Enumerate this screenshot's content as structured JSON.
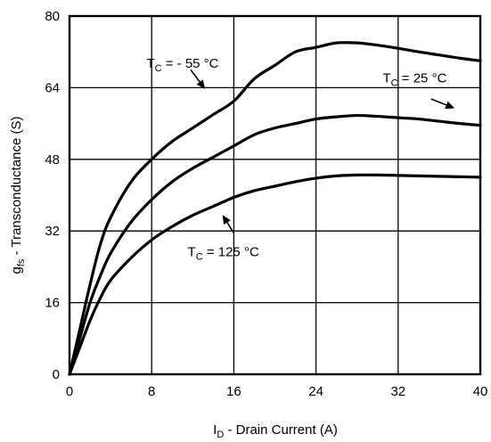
{
  "chart_data": {
    "type": "line",
    "title": "",
    "xlabel": {
      "main": "I",
      "sub": "D",
      "rest": " - Drain Current (A)"
    },
    "ylabel": {
      "main": "g",
      "sub": "fs",
      "rest": " - Transconductance (S)"
    },
    "xlim": [
      0,
      40
    ],
    "ylim": [
      0,
      80
    ],
    "xticks": [
      "0",
      "8",
      "16",
      "24",
      "32",
      "40"
    ],
    "yticks": [
      "0",
      "16",
      "32",
      "48",
      "64",
      "80"
    ],
    "grid": true,
    "colors": {
      "line": "#000000",
      "grid": "#000000",
      "background": "#ffffff"
    },
    "series": [
      {
        "x": [
          0,
          1,
          2,
          3,
          4,
          6,
          8,
          10,
          12,
          14,
          16,
          18,
          20,
          22,
          24,
          26,
          28,
          30,
          32,
          34,
          36,
          38,
          40
        ],
        "values": [
          0,
          10,
          20,
          29,
          35,
          43,
          48,
          52,
          55,
          58,
          61,
          66,
          69,
          72,
          73,
          74,
          74,
          73.5,
          72.8,
          72,
          71.3,
          70.6,
          70
        ]
      },
      {
        "x": [
          0,
          1,
          2,
          3,
          4,
          6,
          8,
          10,
          12,
          14,
          16,
          18,
          20,
          22,
          24,
          26,
          28,
          30,
          32,
          34,
          36,
          38,
          40
        ],
        "values": [
          0,
          8,
          16,
          22,
          27,
          34,
          39,
          43,
          46,
          48.5,
          51,
          53.5,
          55,
          56,
          57,
          57.5,
          57.8,
          57.6,
          57.3,
          57,
          56.5,
          56,
          55.6
        ]
      },
      {
        "x": [
          0,
          1,
          2,
          3,
          4,
          6,
          8,
          10,
          12,
          14,
          16,
          18,
          20,
          22,
          24,
          26,
          28,
          30,
          32,
          34,
          36,
          38,
          40
        ],
        "values": [
          0,
          6,
          12,
          17,
          21,
          26,
          30,
          33,
          35.5,
          37.5,
          39.5,
          41,
          42,
          43,
          43.8,
          44.3,
          44.5,
          44.5,
          44.4,
          44.3,
          44.2,
          44.1,
          44
        ]
      }
    ],
    "annotations": [
      {
        "main": "T",
        "sub": "C",
        "rest": " = - 55 °C",
        "x": 7.5,
        "y": 68.5,
        "arrow_from": [
          11.8,
          68.0
        ],
        "arrow_to": [
          13.2,
          63.7
        ]
      },
      {
        "main": "T",
        "sub": "C",
        "rest": " = 25 °C",
        "x": 30.5,
        "y": 65.2,
        "arrow_from": [
          35.2,
          61.5
        ],
        "arrow_to": [
          37.5,
          59.4
        ]
      },
      {
        "main": "T",
        "sub": "C",
        "rest": " = 125 °C",
        "x": 11.5,
        "y": 26.4,
        "arrow_from": [
          16.0,
          31.5
        ],
        "arrow_to": [
          14.9,
          35.6
        ]
      }
    ]
  }
}
